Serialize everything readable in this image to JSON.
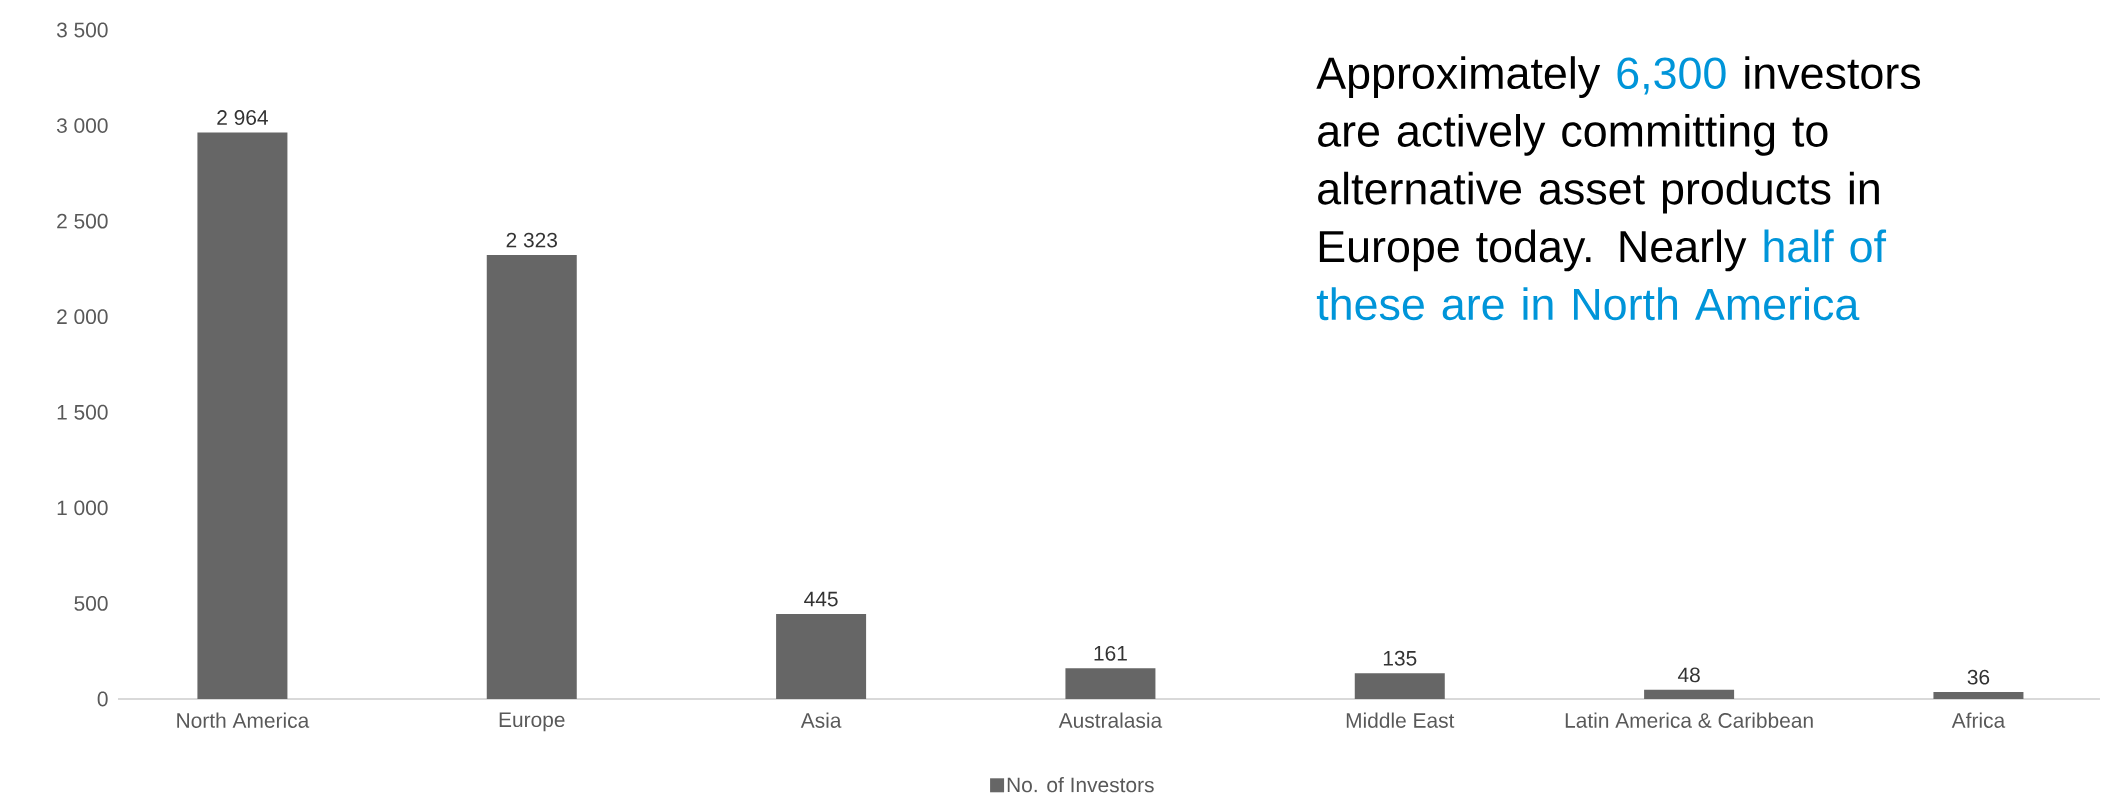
{
  "chart_data": {
    "type": "bar",
    "categories": [
      "North America",
      "Europe",
      "Asia",
      "Australasia",
      "Middle East",
      "Latin America & Caribbean",
      "Africa"
    ],
    "series": [
      {
        "name": "No. of Investors",
        "color": "#666666",
        "values": [
          2964,
          2323,
          445,
          161,
          135,
          48,
          36
        ],
        "value_labels": [
          "2 964",
          "2 323",
          "445",
          "161",
          "135",
          "48",
          "36"
        ]
      }
    ],
    "ylim": [
      0,
      3500
    ],
    "yticks": [
      0,
      500,
      {
        "value": 1000,
        "label": "1 000"
      },
      {
        "value": 1500,
        "label": "1 500"
      },
      {
        "value": 2000,
        "label": "2 000"
      },
      {
        "value": 2500,
        "label": "2 500"
      },
      {
        "value": 3000,
        "label": "3 000"
      },
      {
        "value": 3500,
        "label": "3 500"
      }
    ],
    "grid": false,
    "legend": "bottom",
    "annotations": [
      "Approximately ",
      "6,300",
      " investors are actively committing to alternative asset products in Europe today. Nearly ",
      "half of these are in North America"
    ]
  }
}
